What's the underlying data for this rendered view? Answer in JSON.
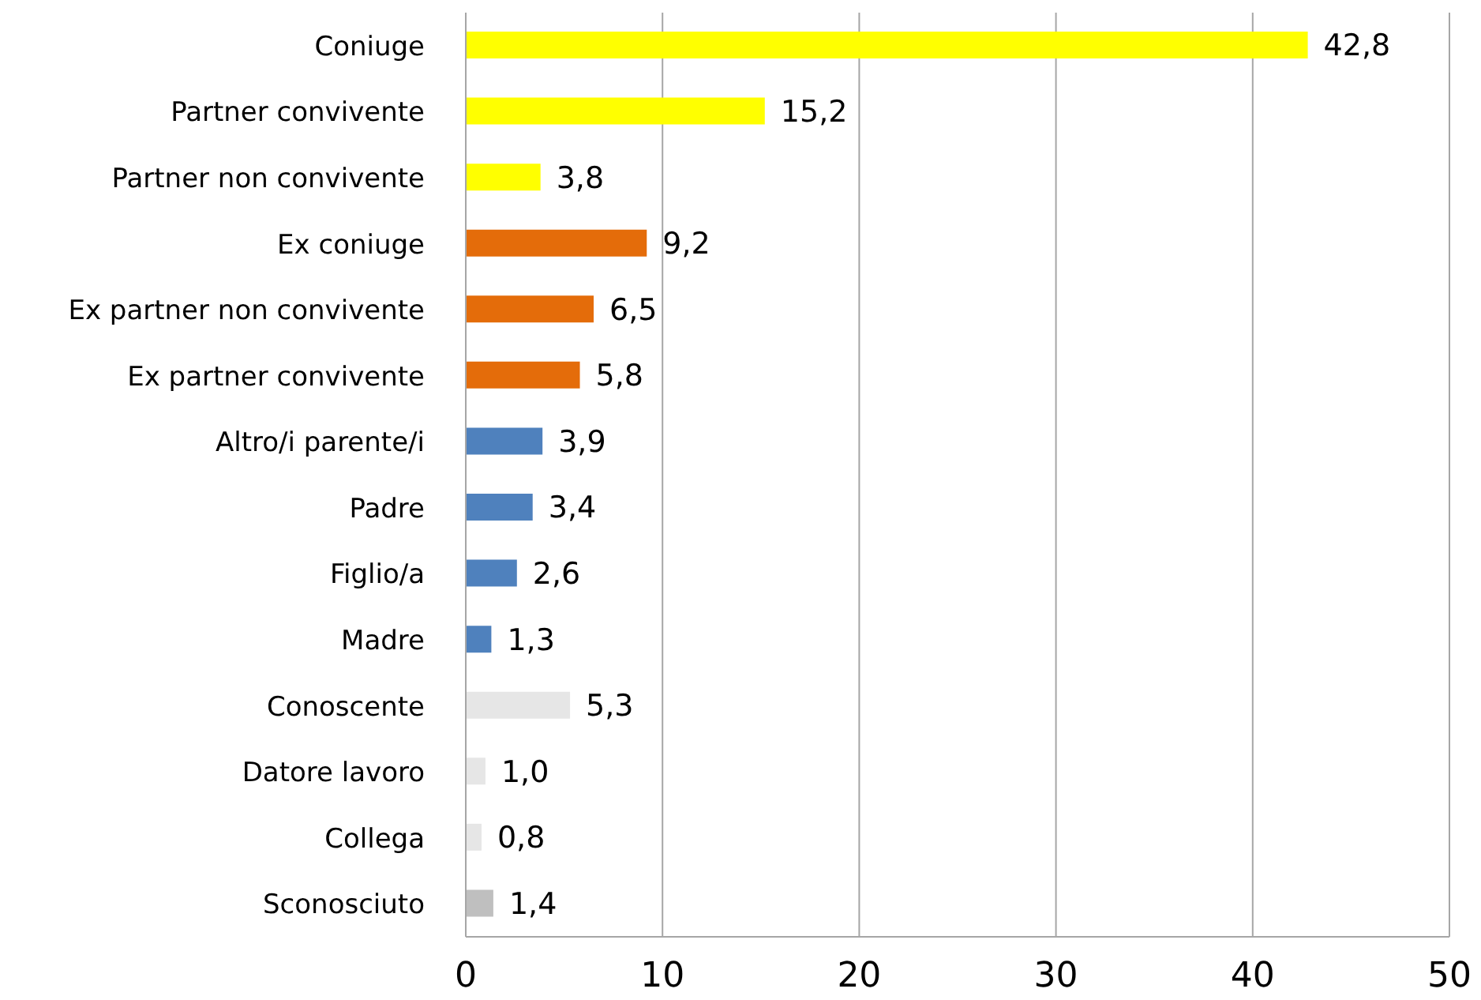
{
  "chart_data": {
    "type": "bar",
    "orientation": "horizontal",
    "categories": [
      "Coniuge",
      "Partner convivente",
      "Partner non convivente",
      "Ex coniuge",
      "Ex partner non convivente",
      "Ex partner convivente",
      "Altro/i parente/i",
      "Padre",
      "Figlio/a",
      "Madre",
      "Conoscente",
      "Datore lavoro",
      "Collega",
      "Sconosciuto"
    ],
    "values": [
      42.8,
      15.2,
      3.8,
      9.2,
      6.5,
      5.8,
      3.9,
      3.4,
      2.6,
      1.3,
      5.3,
      1.0,
      0.8,
      1.4
    ],
    "value_labels": [
      "42,8",
      "15,2",
      "3,8",
      "9,2",
      "6,5",
      "5,8",
      "3,9",
      "3,4",
      "2,6",
      "1,3",
      "5,3",
      "1,0",
      "0,8",
      "1,4"
    ],
    "colors": [
      "#ffff00",
      "#ffff00",
      "#ffff00",
      "#e46c0a",
      "#e46c0a",
      "#e46c0a",
      "#4f81bd",
      "#4f81bd",
      "#4f81bd",
      "#4f81bd",
      "#e6e6e6",
      "#e6e6e6",
      "#e6e6e6",
      "#bfbfbf"
    ],
    "xlim": [
      0,
      50
    ],
    "xticks": [
      0,
      10,
      20,
      30,
      40,
      50
    ],
    "grid": "x"
  }
}
